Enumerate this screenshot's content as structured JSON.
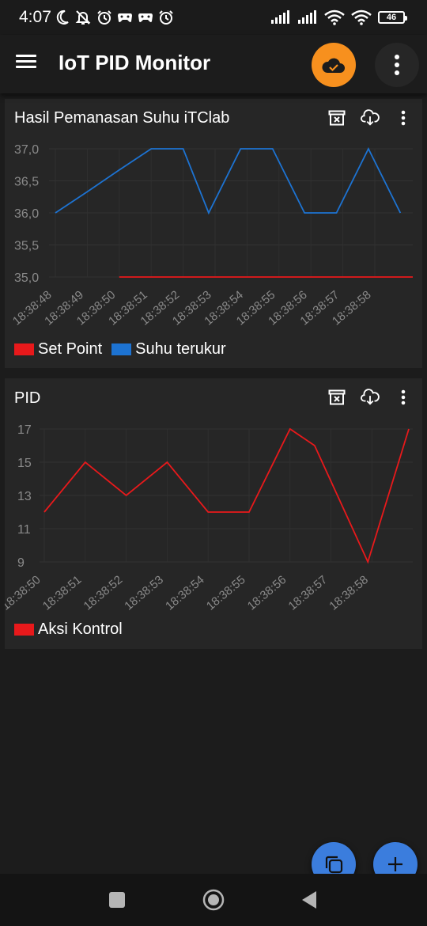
{
  "status_bar": {
    "time": "4:07",
    "battery": "46",
    "icons_left": [
      "moon-icon",
      "bell-off-icon",
      "alarm-icon",
      "game-controller-icon",
      "game-controller-icon",
      "alarm-icon"
    ],
    "icons_right": [
      "signal-icon",
      "signal-icon",
      "wifi-icon",
      "wifi-icon",
      "battery-icon"
    ]
  },
  "app_bar": {
    "title": "IoT PID Monitor",
    "sync_icon": "cloud-check-icon",
    "more_icon": "more-vert-icon",
    "accent_color": "#f7901e"
  },
  "cards": [
    {
      "title": "Hasil Pemanasan Suhu iTClab",
      "actions": [
        "archive-x-icon",
        "cloud-download-icon",
        "more-vert-icon"
      ],
      "legend": [
        {
          "label": "Set Point",
          "color": "#e8191b"
        },
        {
          "label": "Suhu terukur",
          "color": "#1d73d2"
        }
      ]
    },
    {
      "title": "PID",
      "actions": [
        "archive-x-icon",
        "cloud-download-icon",
        "more-vert-icon"
      ],
      "legend": [
        {
          "label": "Aksi Kontrol",
          "color": "#e8191b"
        }
      ]
    }
  ],
  "chart_data": [
    {
      "type": "line",
      "title": "Hasil Pemanasan Suhu iTClab",
      "categories": [
        "18:38:48",
        "18:38:49",
        "18:38:50",
        "18:38:51",
        "18:38:52",
        "18:38:53",
        "18:38:54",
        "18:38:55",
        "18:38:56",
        "18:38:57",
        "18:38:58"
      ],
      "y_ticks": [
        "37,0",
        "36,5",
        "36,0",
        "35,5",
        "35,0"
      ],
      "ylim": [
        35.0,
        37.0
      ],
      "grid": true,
      "legend_position": "bottom-left",
      "series": [
        {
          "name": "Set Point",
          "color": "#e8191b",
          "values": [
            null,
            null,
            35.0,
            35.0,
            35.0,
            35.0,
            35.0,
            35.0,
            35.0,
            35.0,
            35.0
          ],
          "extends_to_edge": true
        },
        {
          "name": "Suhu terukur",
          "color": "#1d73d2",
          "values": [
            36.0,
            36.33,
            36.67,
            37.0,
            37.0,
            36.0,
            37.0,
            37.0,
            36.0,
            36.0,
            37.0,
            36.0
          ],
          "x": [
            0,
            1,
            2,
            3,
            4,
            4.8,
            5.8,
            6.8,
            7.8,
            8.8,
            9.8,
            10.8
          ]
        }
      ]
    },
    {
      "type": "line",
      "title": "PID",
      "categories": [
        "18:38:50",
        "18:38:51",
        "18:38:52",
        "18:38:53",
        "18:38:54",
        "18:38:55",
        "18:38:56",
        "18:38:57",
        "18:38:58"
      ],
      "y_ticks": [
        "17",
        "15",
        "13",
        "11",
        "9"
      ],
      "ylim": [
        9,
        17
      ],
      "grid": true,
      "legend_position": "bottom-left",
      "series": [
        {
          "name": "Aksi Kontrol",
          "color": "#e8191b",
          "values": [
            12,
            15,
            13,
            15,
            12,
            12,
            17,
            16,
            9,
            17
          ],
          "x": [
            0,
            1,
            2,
            3,
            4,
            5,
            6,
            6.6,
            7.9,
            8.9
          ]
        }
      ]
    }
  ],
  "fabs": [
    {
      "icon": "copy-icon"
    },
    {
      "icon": "plus-icon"
    }
  ],
  "nav_bar": {
    "icons": [
      "recent-apps-icon",
      "home-icon",
      "back-icon"
    ]
  }
}
